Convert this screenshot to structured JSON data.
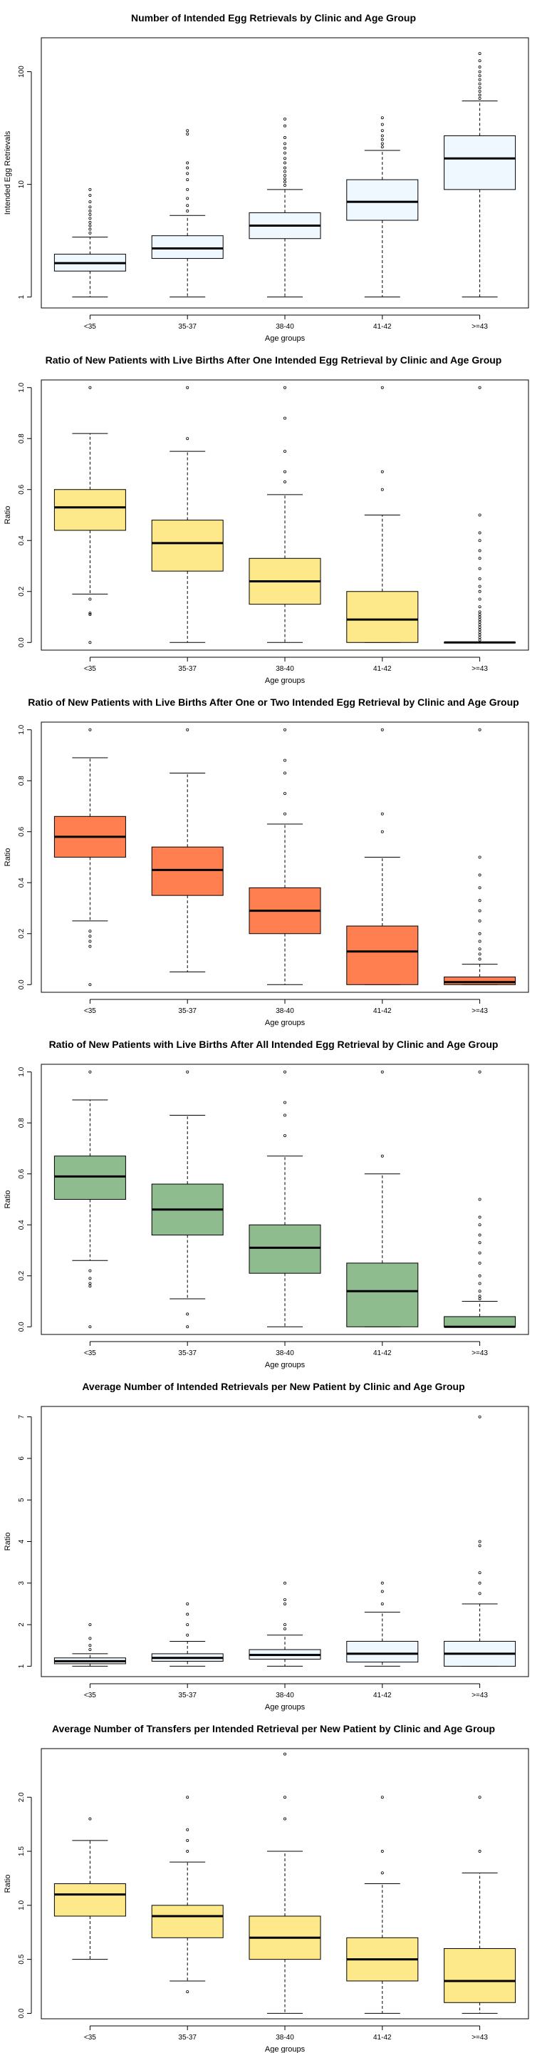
{
  "chart_data": [
    {
      "type": "boxplot",
      "title": "Number of Intended Egg Retrievals by Clinic and Age Group",
      "xlabel": "Age groups",
      "ylabel": "Intended Egg Retrievals",
      "yscale": "log",
      "ylim": [
        0.8,
        200
      ],
      "yticks": [
        1,
        10,
        100
      ],
      "fill": "#f0f8ff",
      "categories": [
        "<35",
        "35-37",
        "38-40",
        "41-42",
        ">=43"
      ],
      "boxes": [
        {
          "whisker_low": 1,
          "q1": 1.7,
          "median": 2.0,
          "q3": 2.4,
          "whisker_high": 3.4,
          "outliers": [
            3.7,
            4.0,
            4.3,
            4.6,
            5.0,
            5.4,
            5.8,
            6.3,
            7.0,
            8.0,
            9.0
          ]
        },
        {
          "whisker_low": 1,
          "q1": 2.2,
          "median": 2.7,
          "q3": 3.5,
          "whisker_high": 5.3,
          "outliers": [
            5.8,
            6.5,
            7.5,
            9.0,
            11,
            12.5,
            14,
            15.5,
            28,
            30
          ]
        },
        {
          "whisker_low": 1,
          "q1": 3.3,
          "median": 4.3,
          "q3": 5.6,
          "whisker_high": 9.0,
          "outliers": [
            9.8,
            10.5,
            11.2,
            12,
            13,
            14,
            15.5,
            17,
            19,
            21,
            23,
            26,
            33,
            38
          ]
        },
        {
          "whisker_low": 1,
          "q1": 4.8,
          "median": 7.0,
          "q3": 11,
          "whisker_high": 20,
          "outliers": [
            21.5,
            23,
            25,
            27,
            30,
            34,
            39
          ]
        },
        {
          "whisker_low": 1,
          "q1": 9.0,
          "median": 17,
          "q3": 27,
          "whisker_high": 55,
          "outliers": [
            58,
            62,
            67,
            72,
            78,
            85,
            92,
            100,
            110,
            125,
            145
          ]
        }
      ]
    },
    {
      "type": "boxplot",
      "title": "Ratio of New Patients with Live Births After One Intended Egg Retrieval by Clinic and Age Group",
      "xlabel": "Age groups",
      "ylabel": "Ratio",
      "yscale": "linear",
      "ylim": [
        -0.03,
        1.03
      ],
      "yticks": [
        0.0,
        0.2,
        0.4,
        0.6,
        0.8,
        1.0
      ],
      "fill": "#fde88a",
      "categories": [
        "<35",
        "35-37",
        "38-40",
        "41-42",
        ">=43"
      ],
      "boxes": [
        {
          "whisker_low": 0.19,
          "q1": 0.44,
          "median": 0.53,
          "q3": 0.6,
          "whisker_high": 0.82,
          "outliers": [
            0.0,
            0.11,
            0.115,
            0.17,
            1.0
          ]
        },
        {
          "whisker_low": 0.0,
          "q1": 0.28,
          "median": 0.39,
          "q3": 0.48,
          "whisker_high": 0.75,
          "outliers": [
            0.8,
            1.0
          ]
        },
        {
          "whisker_low": 0.0,
          "q1": 0.15,
          "median": 0.24,
          "q3": 0.33,
          "whisker_high": 0.58,
          "outliers": [
            0.63,
            0.67,
            0.75,
            0.88,
            1.0
          ]
        },
        {
          "whisker_low": 0.0,
          "q1": 0.0,
          "median": 0.09,
          "q3": 0.2,
          "whisker_high": 0.5,
          "outliers": [
            0.6,
            0.67,
            1.0
          ]
        },
        {
          "whisker_low": 0.0,
          "q1": 0.0,
          "median": 0.0,
          "q3": 0.0,
          "whisker_high": 0.0,
          "outliers": [
            0.01,
            0.02,
            0.03,
            0.04,
            0.05,
            0.06,
            0.07,
            0.08,
            0.09,
            0.1,
            0.11,
            0.12,
            0.14,
            0.17,
            0.2,
            0.22,
            0.25,
            0.29,
            0.33,
            0.36,
            0.4,
            0.43,
            0.5,
            1.0
          ]
        }
      ]
    },
    {
      "type": "boxplot",
      "title": "Ratio of New Patients with Live Births After One or Two Intended Egg Retrieval by Clinic and Age Group",
      "xlabel": "Age groups",
      "ylabel": "Ratio",
      "yscale": "linear",
      "ylim": [
        -0.03,
        1.03
      ],
      "yticks": [
        0.0,
        0.2,
        0.4,
        0.6,
        0.8,
        1.0
      ],
      "fill": "#ff7f50",
      "categories": [
        "<35",
        "35-37",
        "38-40",
        "41-42",
        ">=43"
      ],
      "boxes": [
        {
          "whisker_low": 0.25,
          "q1": 0.5,
          "median": 0.58,
          "q3": 0.66,
          "whisker_high": 0.89,
          "outliers": [
            0.0,
            0.15,
            0.17,
            0.19,
            0.21,
            1.0
          ]
        },
        {
          "whisker_low": 0.05,
          "q1": 0.35,
          "median": 0.45,
          "q3": 0.54,
          "whisker_high": 0.83,
          "outliers": [
            1.0
          ]
        },
        {
          "whisker_low": 0.0,
          "q1": 0.2,
          "median": 0.29,
          "q3": 0.38,
          "whisker_high": 0.63,
          "outliers": [
            0.67,
            0.75,
            0.83,
            0.88,
            1.0
          ]
        },
        {
          "whisker_low": 0.0,
          "q1": 0.0,
          "median": 0.13,
          "q3": 0.23,
          "whisker_high": 0.5,
          "outliers": [
            0.6,
            0.67,
            1.0
          ]
        },
        {
          "whisker_low": 0.0,
          "q1": 0.0,
          "median": 0.01,
          "q3": 0.03,
          "whisker_high": 0.08,
          "outliers": [
            0.1,
            0.12,
            0.14,
            0.17,
            0.2,
            0.25,
            0.29,
            0.33,
            0.38,
            0.43,
            0.5,
            1.0
          ]
        }
      ]
    },
    {
      "type": "boxplot",
      "title": "Ratio of New Patients with Live Births After All Intended Egg Retrieval by Clinic and Age Group",
      "xlabel": "Age groups",
      "ylabel": "Ratio",
      "yscale": "linear",
      "ylim": [
        -0.03,
        1.03
      ],
      "yticks": [
        0.0,
        0.2,
        0.4,
        0.6,
        0.8,
        1.0
      ],
      "fill": "#8fbc8f",
      "categories": [
        "<35",
        "35-37",
        "38-40",
        "41-42",
        ">=43"
      ],
      "boxes": [
        {
          "whisker_low": 0.26,
          "q1": 0.5,
          "median": 0.59,
          "q3": 0.67,
          "whisker_high": 0.89,
          "outliers": [
            0.0,
            0.16,
            0.17,
            0.19,
            0.22,
            1.0
          ]
        },
        {
          "whisker_low": 0.11,
          "q1": 0.36,
          "median": 0.46,
          "q3": 0.56,
          "whisker_high": 0.83,
          "outliers": [
            0.0,
            0.05,
            1.0
          ]
        },
        {
          "whisker_low": 0.0,
          "q1": 0.21,
          "median": 0.31,
          "q3": 0.4,
          "whisker_high": 0.67,
          "outliers": [
            0.75,
            0.83,
            0.88,
            1.0
          ]
        },
        {
          "whisker_low": 0.0,
          "q1": 0.0,
          "median": 0.14,
          "q3": 0.25,
          "whisker_high": 0.6,
          "outliers": [
            0.67,
            1.0
          ]
        },
        {
          "whisker_low": 0.0,
          "q1": 0.0,
          "median": 0.0,
          "q3": 0.04,
          "whisker_high": 0.1,
          "outliers": [
            0.11,
            0.12,
            0.14,
            0.17,
            0.2,
            0.25,
            0.29,
            0.33,
            0.36,
            0.4,
            0.43,
            0.5,
            1.0
          ]
        }
      ]
    },
    {
      "type": "boxplot",
      "title": "Average Number of Intended Retrievals per New Patient by Clinic and Age Group",
      "xlabel": "Age groups",
      "ylabel": "Ratio",
      "yscale": "linear",
      "ylim": [
        0.75,
        7.25
      ],
      "yticks": [
        1,
        2,
        3,
        4,
        5,
        6,
        7
      ],
      "fill": "#f0f8ff",
      "categories": [
        "<35",
        "35-37",
        "38-40",
        "41-42",
        ">=43"
      ],
      "boxes": [
        {
          "whisker_low": 1.0,
          "q1": 1.06,
          "median": 1.12,
          "q3": 1.2,
          "whisker_high": 1.3,
          "outliers": [
            1.4,
            1.5,
            1.67,
            2.0
          ]
        },
        {
          "whisker_low": 1.0,
          "q1": 1.12,
          "median": 1.2,
          "q3": 1.3,
          "whisker_high": 1.6,
          "outliers": [
            1.75,
            2.0,
            2.25,
            2.5
          ]
        },
        {
          "whisker_low": 1.0,
          "q1": 1.17,
          "median": 1.27,
          "q3": 1.4,
          "whisker_high": 1.75,
          "outliers": [
            1.9,
            2.0,
            2.5,
            2.6,
            3.0
          ]
        },
        {
          "whisker_low": 1.0,
          "q1": 1.1,
          "median": 1.3,
          "q3": 1.6,
          "whisker_high": 2.3,
          "outliers": [
            2.5,
            2.8,
            3.0
          ]
        },
        {
          "whisker_low": 1.0,
          "q1": 1.0,
          "median": 1.3,
          "q3": 1.6,
          "whisker_high": 2.5,
          "outliers": [
            2.75,
            3.0,
            3.25,
            3.9,
            4.0,
            7.0
          ]
        }
      ]
    },
    {
      "type": "boxplot",
      "title": "Average Number of Transfers per Intended Retrieval per New Patient by Clinic and Age Group",
      "xlabel": "Age groups",
      "ylabel": "Ratio",
      "yscale": "linear",
      "ylim": [
        -0.05,
        2.45
      ],
      "yticks": [
        0.0,
        0.5,
        1.0,
        1.5,
        2.0
      ],
      "fill": "#fde88a",
      "categories": [
        "<35",
        "35-37",
        "38-40",
        "41-42",
        ">=43"
      ],
      "boxes": [
        {
          "whisker_low": 0.5,
          "q1": 0.9,
          "median": 1.1,
          "q3": 1.2,
          "whisker_high": 1.6,
          "outliers": [
            1.8
          ]
        },
        {
          "whisker_low": 0.3,
          "q1": 0.7,
          "median": 0.9,
          "q3": 1.0,
          "whisker_high": 1.4,
          "outliers": [
            0.2,
            1.5,
            1.6,
            1.7,
            2.0
          ]
        },
        {
          "whisker_low": 0.0,
          "q1": 0.5,
          "median": 0.7,
          "q3": 0.9,
          "whisker_high": 1.5,
          "outliers": [
            1.8,
            2.0,
            2.4
          ]
        },
        {
          "whisker_low": 0.0,
          "q1": 0.3,
          "median": 0.5,
          "q3": 0.7,
          "whisker_high": 1.2,
          "outliers": [
            1.3,
            1.5,
            2.0
          ]
        },
        {
          "whisker_low": 0.0,
          "q1": 0.1,
          "median": 0.3,
          "q3": 0.6,
          "whisker_high": 1.3,
          "outliers": [
            1.5,
            2.0
          ]
        }
      ]
    }
  ]
}
